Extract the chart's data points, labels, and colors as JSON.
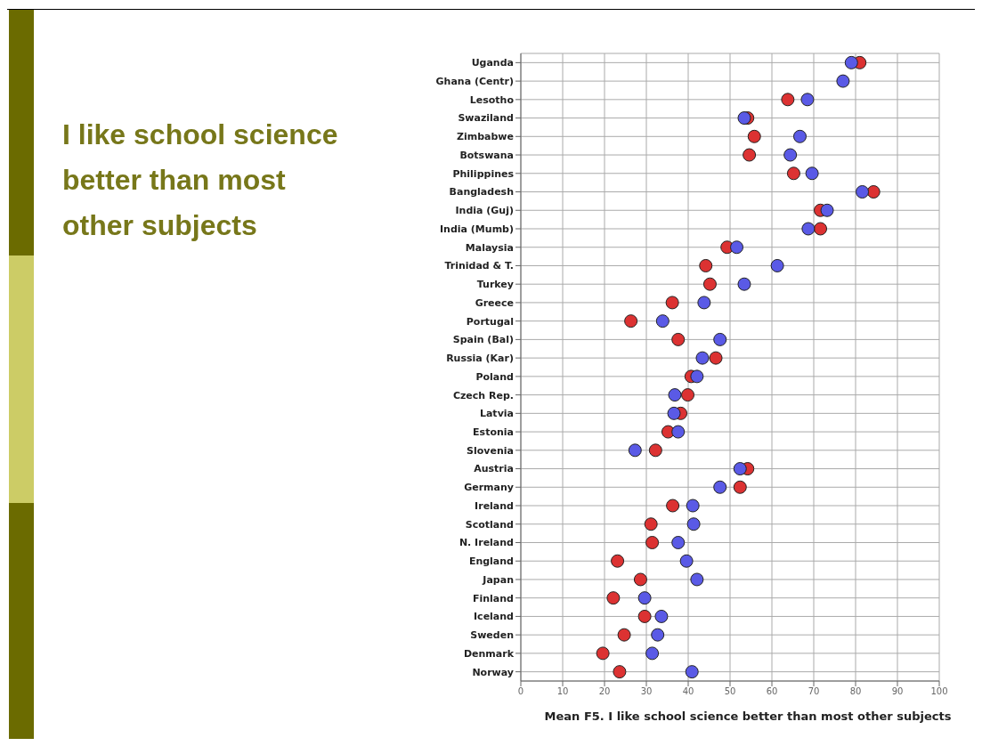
{
  "chart_data": {
    "type": "scatter",
    "orientation": "horizontal",
    "title": "I like school science better than most other subjects",
    "xlabel": "Mean F5. I like school science better than most other subjects",
    "categories": [
      "Uganda",
      "Ghana (Centr)",
      "Lesotho",
      "Swaziland",
      "Zimbabwe",
      "Botswana",
      "Philippines",
      "Bangladesh",
      "India (Guj)",
      "India (Mumb)",
      "Malaysia",
      "Trinidad & T.",
      "Turkey",
      "Greece",
      "Portugal",
      "Spain (Bal)",
      "Russia (Kar)",
      "Poland",
      "Czech Rep.",
      "Latvia",
      "Estonia",
      "Slovenia",
      "Austria",
      "Germany",
      "Ireland",
      "Scotland",
      "N. Ireland",
      "England",
      "Japan",
      "Finland",
      "Iceland",
      "Sweden",
      "Denmark",
      "Norway"
    ],
    "series": [
      {
        "color": "#dc3232",
        "values": [
          81,
          null,
          63.8,
          54.2,
          55.8,
          54.6,
          65.2,
          84.3,
          71.6,
          71.6,
          49.3,
          44.2,
          45.2,
          36.2,
          26.3,
          37.6,
          46.6,
          40.7,
          39.9,
          38.2,
          35.2,
          32.2,
          54.2,
          52.4,
          36.3,
          31.1,
          31.4,
          23.1,
          28.6,
          22.1,
          29.6,
          24.7,
          19.6,
          23.6
        ]
      },
      {
        "color": "#5a5ae6",
        "values": [
          79,
          77,
          68.5,
          53.4,
          66.7,
          64.4,
          69.6,
          81.6,
          73.2,
          68.7,
          51.6,
          61.3,
          53.4,
          43.8,
          33.9,
          47.6,
          43.4,
          42.1,
          36.8,
          36.6,
          37.6,
          27.3,
          52.4,
          47.6,
          41.1,
          41.3,
          37.6,
          39.6,
          42.1,
          29.6,
          33.6,
          32.7,
          31.4,
          40.9
        ]
      }
    ],
    "xlim": [
      0,
      100
    ],
    "xticks": [
      0,
      10,
      20,
      30,
      40,
      50,
      60,
      70,
      80,
      90,
      100
    ],
    "grid": true,
    "marker": "circle"
  }
}
